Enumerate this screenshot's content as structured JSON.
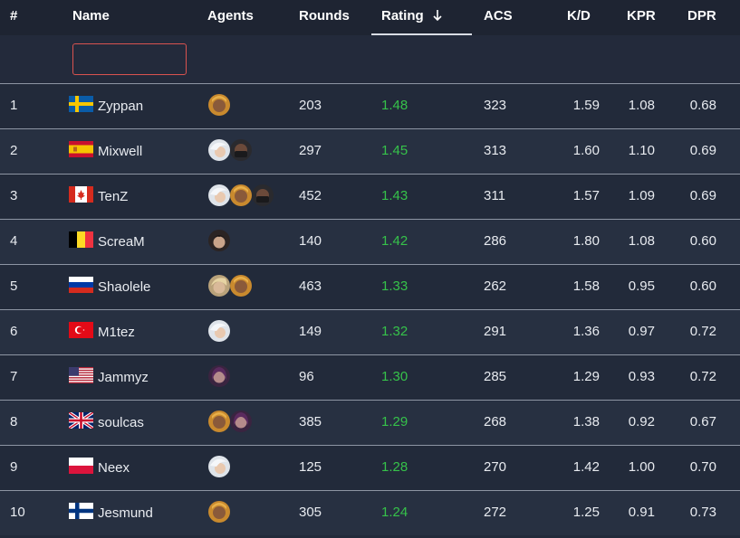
{
  "header": {
    "rank": "#",
    "name": "Name",
    "agents": "Agents",
    "rounds": "Rounds",
    "rating": "Rating",
    "acs": "ACS",
    "kd": "K/D",
    "kpr": "KPR",
    "dpr": "DPR"
  },
  "filter": {
    "name_value": "",
    "placeholder": ""
  },
  "colors": {
    "rating": "#36c24a",
    "filter_border": "#d9534f"
  },
  "players": [
    {
      "rank": "1",
      "name": "Zyppan",
      "country": "Sweden",
      "agents": [
        "yellow-hair-agent"
      ],
      "rounds": "203",
      "rating": "1.48",
      "acs": "323",
      "kd": "1.59",
      "kpr": "1.08",
      "dpr": "0.68"
    },
    {
      "rank": "2",
      "name": "Mixwell",
      "country": "Spain",
      "agents": [
        "white-hair-agent",
        "masked-agent"
      ],
      "rounds": "297",
      "rating": "1.45",
      "acs": "313",
      "kd": "1.60",
      "kpr": "1.10",
      "dpr": "0.69"
    },
    {
      "rank": "3",
      "name": "TenZ",
      "country": "Canada",
      "agents": [
        "white-hair-agent",
        "yellow-hair-agent",
        "masked-agent"
      ],
      "rounds": "452",
      "rating": "1.43",
      "acs": "311",
      "kd": "1.57",
      "kpr": "1.09",
      "dpr": "0.69"
    },
    {
      "rank": "4",
      "name": "ScreaM",
      "country": "Belgium",
      "agents": [
        "dark-hair-agent"
      ],
      "rounds": "140",
      "rating": "1.42",
      "acs": "286",
      "kd": "1.80",
      "kpr": "1.08",
      "dpr": "0.60"
    },
    {
      "rank": "5",
      "name": "Shaolele",
      "country": "Russia",
      "agents": [
        "blonde-agent",
        "yellow-hair-agent"
      ],
      "rounds": "463",
      "rating": "1.33",
      "acs": "262",
      "kd": "1.58",
      "kpr": "0.95",
      "dpr": "0.60"
    },
    {
      "rank": "6",
      "name": "M1tez",
      "country": "Turkey",
      "agents": [
        "white-hair-agent"
      ],
      "rounds": "149",
      "rating": "1.32",
      "acs": "291",
      "kd": "1.36",
      "kpr": "0.97",
      "dpr": "0.72"
    },
    {
      "rank": "7",
      "name": "Jammyz",
      "country": "USA",
      "agents": [
        "purple-agent"
      ],
      "rounds": "96",
      "rating": "1.30",
      "acs": "285",
      "kd": "1.29",
      "kpr": "0.93",
      "dpr": "0.72"
    },
    {
      "rank": "8",
      "name": "soulcas",
      "country": "UK",
      "agents": [
        "yellow-hair-agent",
        "purple-agent"
      ],
      "rounds": "385",
      "rating": "1.29",
      "acs": "268",
      "kd": "1.38",
      "kpr": "0.92",
      "dpr": "0.67"
    },
    {
      "rank": "9",
      "name": "Neex",
      "country": "Poland",
      "agents": [
        "white-hair-agent"
      ],
      "rounds": "125",
      "rating": "1.28",
      "acs": "270",
      "kd": "1.42",
      "kpr": "1.00",
      "dpr": "0.70"
    },
    {
      "rank": "10",
      "name": "Jesmund",
      "country": "Finland",
      "agents": [
        "yellow-hair-agent"
      ],
      "rounds": "305",
      "rating": "1.24",
      "acs": "272",
      "kd": "1.25",
      "kpr": "0.91",
      "dpr": "0.73"
    }
  ]
}
